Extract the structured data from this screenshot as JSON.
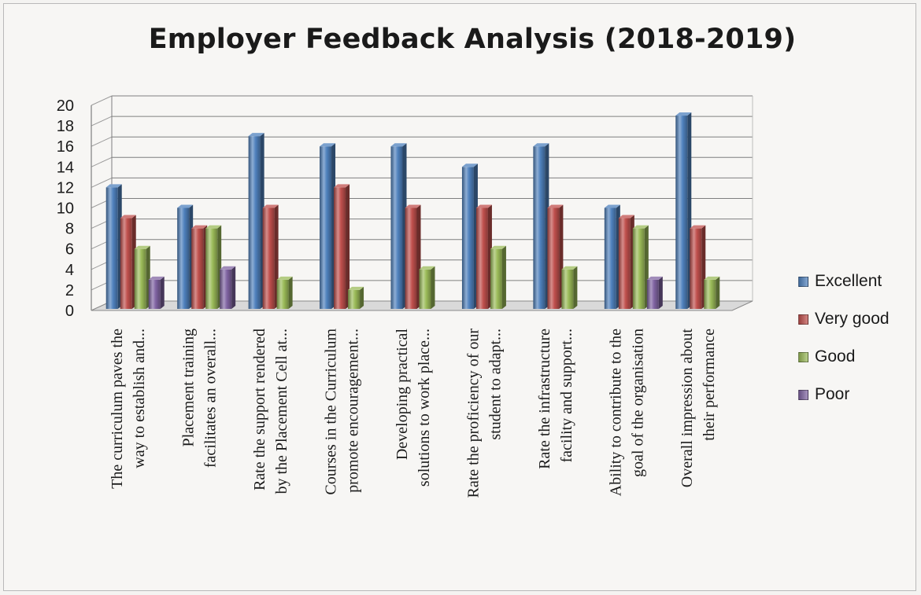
{
  "chart_data": {
    "type": "bar",
    "title": "Employer  Feedback Analysis  (2018-2019)",
    "ylim": [
      0,
      20
    ],
    "yticks": [
      0,
      2,
      4,
      6,
      8,
      10,
      12,
      14,
      16,
      18,
      20
    ],
    "grid": true,
    "legend_position": "right",
    "categories": [
      [
        "The curriculum paves the",
        "way to establish and..."
      ],
      [
        "Placement training",
        "facilitates an overall..."
      ],
      [
        "Rate the support rendered",
        "by the Placement Cell at..."
      ],
      [
        "Courses in the Curriculum",
        "promote encouragement..."
      ],
      [
        "Developing practical",
        "solutions to work place..."
      ],
      [
        "Rate the proficiency of our",
        "student to adapt..."
      ],
      [
        "Rate the infrastructure",
        "facility and support..."
      ],
      [
        "Ability to contribute to the",
        "goal of the organisation"
      ],
      [
        "Overall impression about",
        "their performance"
      ]
    ],
    "series": [
      {
        "name": "Excellent",
        "color": "#4f81bd",
        "values": [
          12,
          10,
          17,
          16,
          16,
          14,
          16,
          10,
          19
        ]
      },
      {
        "name": "Very good",
        "color": "#c0504d",
        "values": [
          9,
          8,
          10,
          12,
          10,
          10,
          10,
          9,
          8
        ]
      },
      {
        "name": "Good",
        "color": "#9bbb59",
        "values": [
          6,
          8,
          3,
          2,
          4,
          6,
          4,
          8,
          3
        ]
      },
      {
        "name": "Poor",
        "color": "#8064a2",
        "values": [
          3,
          4,
          0,
          0,
          0,
          0,
          0,
          3,
          0
        ]
      }
    ]
  }
}
